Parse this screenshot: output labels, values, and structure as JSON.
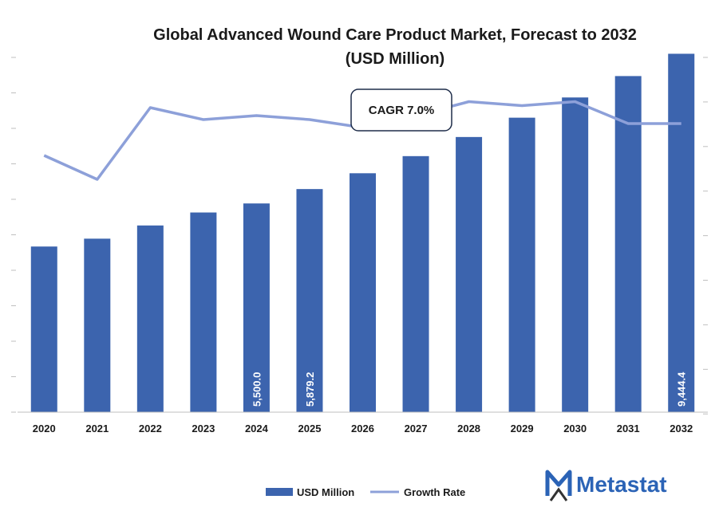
{
  "chart_data": {
    "type": "bar",
    "title_line1": "Global Advanced Wound Care Product Market, Forecast to 2032",
    "title_line2": "(USD Million)",
    "xlabel": "",
    "ylabel": "",
    "categories": [
      "2020",
      "2021",
      "2022",
      "2023",
      "2024",
      "2025",
      "2026",
      "2027",
      "2028",
      "2029",
      "2030",
      "2031",
      "2032"
    ],
    "series": [
      {
        "name": "USD Million",
        "type": "bar",
        "color": "#3c64ae",
        "values": [
          4365,
          4572,
          4920,
          5262,
          5500,
          5879.2,
          6296,
          6747,
          7251,
          7760,
          8293,
          8857,
          9444.4
        ],
        "data_labels": {
          "4": "5,500.0",
          "5": "5,879.2",
          "12": "9,444.4"
        }
      },
      {
        "name": "Growth Rate",
        "type": "line",
        "color": "#8da0d9",
        "axis": "right",
        "values": [
          7.6,
          7.0,
          8.8,
          8.5,
          8.6,
          8.5,
          8.3,
          8.6,
          8.95,
          8.85,
          8.95,
          8.4,
          8.4
        ]
      }
    ],
    "ylim": [
      0,
      10000
    ],
    "y2lim": [
      0,
      10
    ],
    "annotation": "CAGR 7.0%",
    "legend_position": "bottom",
    "grid": false
  },
  "logo": {
    "text": "Metastat",
    "color": "#2b63b6",
    "icon": "metastat-m-icon"
  }
}
